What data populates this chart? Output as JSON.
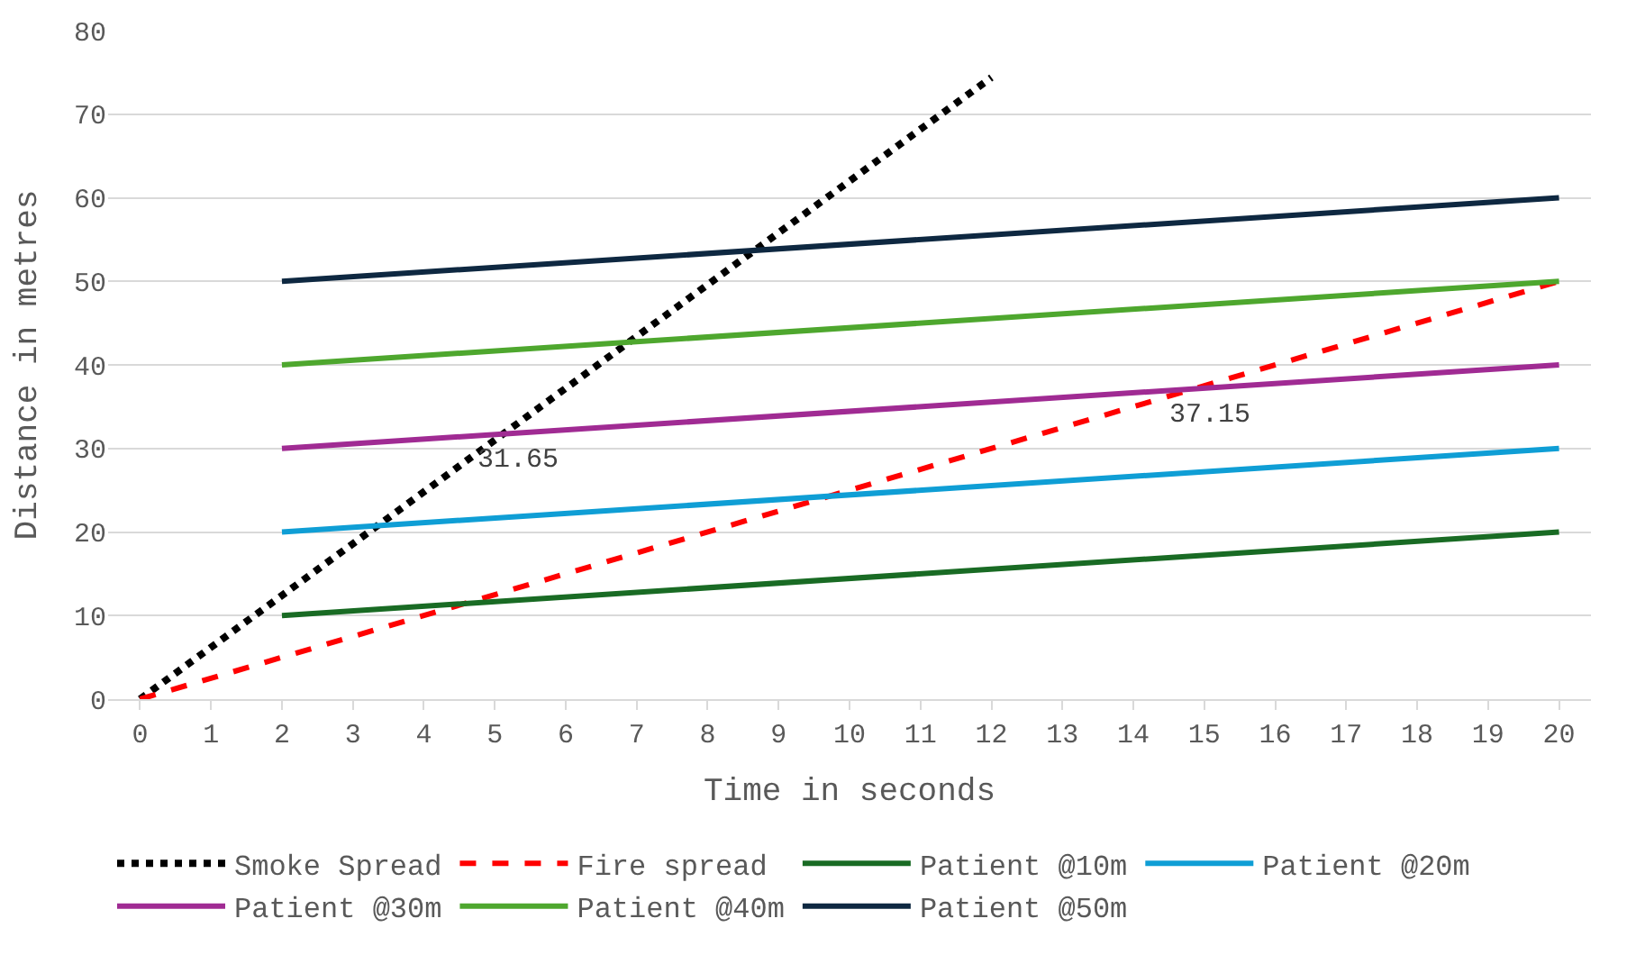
{
  "chart_data": {
    "type": "line",
    "xlabel": "Time in seconds",
    "ylabel": "Distance in metres",
    "xlim": [
      -0.45,
      20.45
    ],
    "xticks": [
      0,
      1,
      2,
      3,
      4,
      5,
      6,
      7,
      8,
      9,
      10,
      11,
      12,
      13,
      14,
      15,
      16,
      17,
      18,
      19,
      20
    ],
    "ylim": [
      0,
      80
    ],
    "yticks": [
      0,
      10,
      20,
      30,
      40,
      50,
      60,
      70,
      80
    ],
    "grid": "y",
    "legend": "bottom",
    "marker": "none",
    "series": [
      {
        "name": "Smoke Spread",
        "color": "#000000",
        "line_style": "dotted",
        "x": [
          0,
          12
        ],
        "values": [
          0,
          74.4
        ]
      },
      {
        "name": "Fire spread",
        "color": "#ff0000",
        "line_style": "dashed",
        "x": [
          0,
          20
        ],
        "values": [
          0,
          50
        ]
      },
      {
        "name": "Patient @10m",
        "color": "#196b24",
        "line_style": "solid",
        "x": [
          2,
          20
        ],
        "values": [
          10,
          20
        ]
      },
      {
        "name": "Patient @20m",
        "color": "#0f9ed5",
        "line_style": "solid",
        "x": [
          2,
          20
        ],
        "values": [
          20,
          30
        ]
      },
      {
        "name": "Patient @30m",
        "color": "#a02b93",
        "line_style": "solid",
        "x": [
          2,
          20
        ],
        "values": [
          30,
          40
        ]
      },
      {
        "name": "Patient @40m",
        "color": "#4ea72e",
        "line_style": "solid",
        "x": [
          2,
          20
        ],
        "values": [
          40,
          50
        ]
      },
      {
        "name": "Patient @50m",
        "color": "#0e2841",
        "line_style": "solid",
        "x": [
          2,
          20
        ],
        "values": [
          50,
          60
        ]
      }
    ],
    "annotations": [
      {
        "text": "31.65",
        "x": 5.12,
        "y": 31.65
      },
      {
        "text": "37.15",
        "x": 14.86,
        "y": 37.15
      }
    ]
  }
}
